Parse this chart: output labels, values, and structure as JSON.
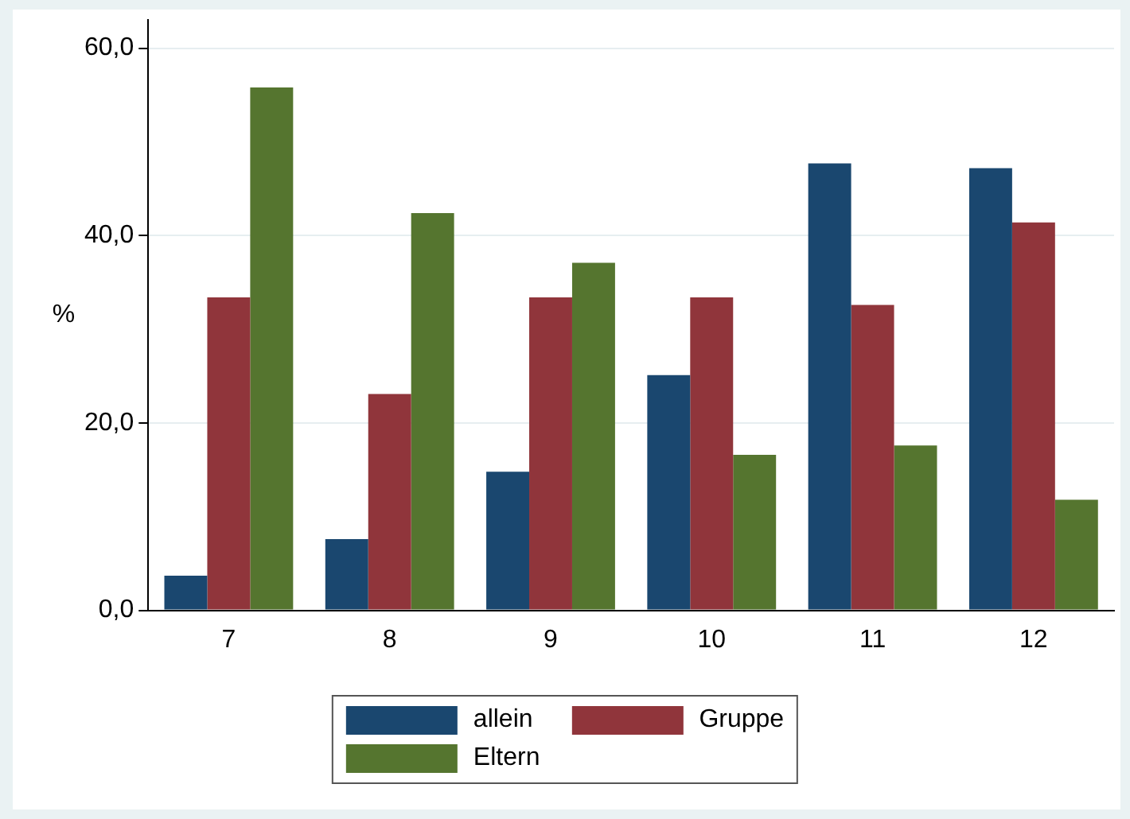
{
  "chart_data": {
    "type": "bar",
    "ylabel": "%",
    "categories": [
      "7",
      "8",
      "9",
      "10",
      "11",
      "12"
    ],
    "series": [
      {
        "name": "allein",
        "color": "#1a476f",
        "values": [
          3.7,
          7.6,
          14.8,
          25.1,
          47.7,
          47.2
        ]
      },
      {
        "name": "Gruppe",
        "color": "#90353b",
        "values": [
          33.4,
          23.1,
          33.4,
          33.4,
          32.6,
          41.4
        ]
      },
      {
        "name": "Eltern",
        "color": "#55752f",
        "values": [
          55.8,
          42.4,
          37.1,
          16.6,
          17.6,
          11.8
        ]
      }
    ],
    "ylim": [
      0,
      63
    ],
    "yticks": [
      {
        "value": 0,
        "label": "0,0"
      },
      {
        "value": 20,
        "label": "20,0"
      },
      {
        "value": 40,
        "label": "40,0"
      },
      {
        "value": 60,
        "label": "60,0"
      }
    ],
    "grid": "y",
    "legend": "bottom"
  }
}
